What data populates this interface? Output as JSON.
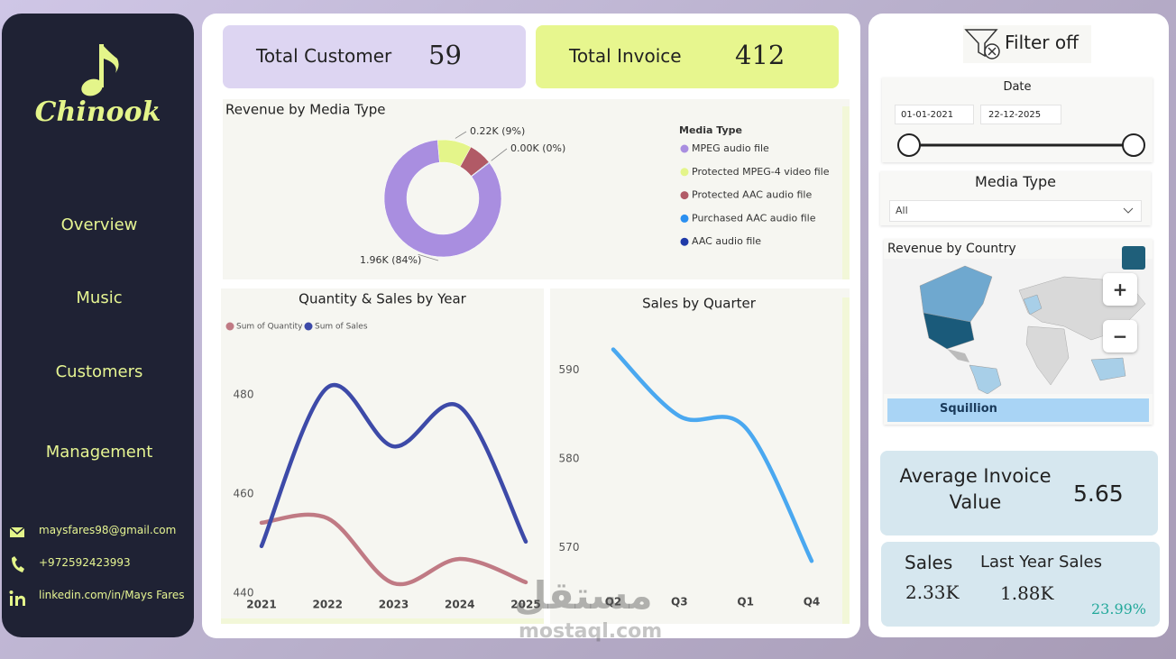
{
  "sidebar": {
    "brand": "Chinook",
    "nav": [
      "Overview",
      "Music",
      "Customers",
      "Management"
    ],
    "contacts": [
      "maysfares98@gmail.com",
      "+972592423993",
      "linkedin.com/in/Mays Fares"
    ]
  },
  "kpis": {
    "total_customer": {
      "label": "Total Customer",
      "value": 59
    },
    "total_invoice": {
      "label": "Total Invoice",
      "value": 412
    }
  },
  "chart_data": [
    {
      "type": "pie",
      "title": "Revenue by Media Type",
      "legend_title": "Media Type",
      "categories": [
        "MPEG audio file",
        "Protected MPEG-4 video file",
        "Protected AAC audio file",
        "Purchased AAC audio file",
        "AAC audio file"
      ],
      "values": [
        1.96,
        0.22,
        0.15,
        0.004,
        0.002
      ],
      "value_labels": [
        "1.96K (84%)",
        "0.22K (9%)",
        null,
        "0.00K (0%)",
        null
      ],
      "colors": [
        "#a98ee0",
        "#e4f58a",
        "#b15a66",
        "#2b8ff0",
        "#1f3aa8"
      ],
      "donut": true
    },
    {
      "type": "line",
      "title": "Quantity & Sales by Year",
      "categories": [
        "2021",
        "2022",
        "2023",
        "2024",
        "2025"
      ],
      "series": [
        {
          "name": "Sum of Quantity",
          "color": "#c07a84",
          "values": [
            454.2,
            455.1,
            442,
            446.9,
            442.2
          ]
        },
        {
          "name": "Sum of Sales",
          "color": "#3d4aa8",
          "values": [
            449.5,
            481.5,
            469.6,
            477.6,
            450.4
          ]
        }
      ],
      "ylim": [
        440,
        490
      ],
      "yticks": [
        440,
        460,
        480
      ]
    },
    {
      "type": "line",
      "title": "Sales by Quarter",
      "categories": [
        "Q2",
        "Q3",
        "Q1",
        "Q4"
      ],
      "series": [
        {
          "name": "Sales",
          "color": "#4aa8f0",
          "values": [
            592.3,
            584.8,
            583.5,
            568.5
          ]
        }
      ],
      "show_legend": false,
      "ylim": [
        567,
        595
      ],
      "yticks": [
        570,
        580,
        590
      ]
    }
  ],
  "filters": {
    "button": "Filter off",
    "date": {
      "title": "Date",
      "start": "01-01-2021",
      "end": "22-12-2025"
    },
    "media_type": {
      "title": "Media Type",
      "selected": "All"
    }
  },
  "map": {
    "title": "Revenue by Country",
    "brand": "Squillion",
    "zoom_in": "+",
    "zoom_out": "−"
  },
  "cards": {
    "average_invoice": {
      "label": "Average Invoice Value",
      "value": 5.65
    },
    "sales": {
      "label": "Sales",
      "value": "2.33K"
    },
    "last_year_sales": {
      "label": "Last Year Sales",
      "value": "1.88K"
    },
    "change": "23.99%"
  },
  "watermark": [
    "مستقل",
    "mostaql.com"
  ]
}
